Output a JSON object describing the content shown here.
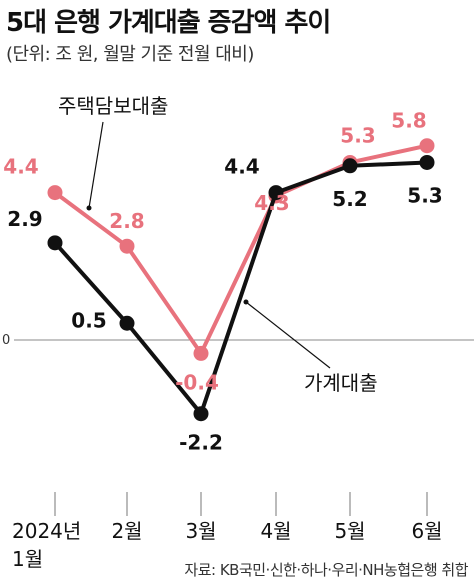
{
  "header": {
    "title": "5대 은행 가계대출 증감액 추이",
    "subtitle": "(단위: 조 원, 월말 기준 전월 대비)"
  },
  "footer": {
    "source": "자료: KB국민·신한·하나·우리·NH농협은행 취합"
  },
  "colors": {
    "household": "#111111",
    "mortgage": "#e8727d"
  },
  "chart_data": {
    "type": "line",
    "title": "5대 은행 가계대출 증감액 추이",
    "subtitle": "(단위: 조 원, 월말 기준 전월 대비)",
    "categories": [
      "2024년\n1월",
      "2월",
      "3월",
      "4월",
      "5월",
      "6월"
    ],
    "series": [
      {
        "name": "주택담보대출",
        "color": "#e8727d",
        "values": [
          4.4,
          2.8,
          -0.4,
          4.3,
          5.3,
          5.8
        ],
        "labels": [
          "4.4",
          "2.8",
          "-0.4",
          "4.3",
          "5.3",
          "5.8"
        ]
      },
      {
        "name": "가계대출",
        "color": "#111111",
        "values": [
          2.9,
          0.5,
          -2.2,
          4.4,
          5.2,
          5.3
        ],
        "labels": [
          "2.9",
          "0.5",
          "-2.2",
          "4.4",
          "5.2",
          "5.3"
        ]
      }
    ],
    "y_tick_labels": [
      "0"
    ],
    "grid": false,
    "legend": "inline annotations"
  }
}
